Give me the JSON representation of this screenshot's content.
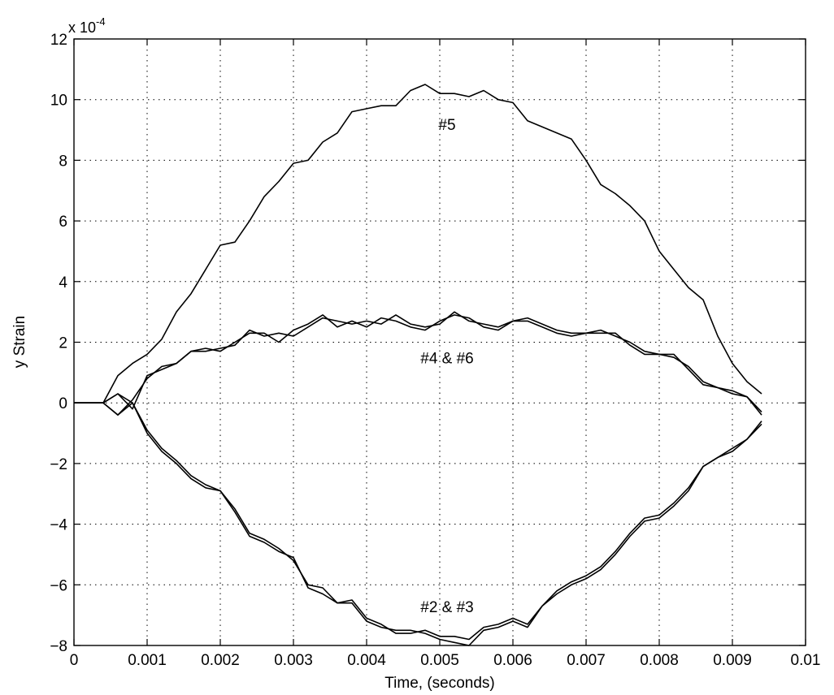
{
  "chart_data": {
    "type": "line",
    "title": "",
    "xlabel": "Time, (seconds)",
    "ylabel": "y Strain",
    "scale_label": "x 10",
    "scale_exponent": "-4",
    "xlim": [
      0,
      0.01
    ],
    "ylim": [
      -8,
      12
    ],
    "grid": true,
    "x_ticks": [
      0,
      0.001,
      0.002,
      0.003,
      0.004,
      0.005,
      0.006,
      0.007,
      0.008,
      0.009,
      0.01
    ],
    "x_tick_labels": [
      "0",
      "0.001",
      "0.002",
      "0.003",
      "0.004",
      "0.005",
      "0.006",
      "0.007",
      "0.008",
      "0.009",
      "0.01"
    ],
    "y_ticks": [
      -8,
      -6,
      -4,
      -2,
      0,
      2,
      4,
      6,
      8,
      10,
      12
    ],
    "y_tick_labels": [
      "−8",
      "−6",
      "−4",
      "−2",
      "0",
      "2",
      "4",
      "6",
      "8",
      "10",
      "12"
    ],
    "annotations": [
      {
        "text": "#5",
        "x": 0.0051,
        "y": 9.0
      },
      {
        "text": "#4 & #6",
        "x": 0.0051,
        "y": 1.3
      },
      {
        "text": "#2 & #3",
        "x": 0.0051,
        "y": -6.9
      }
    ],
    "series": [
      {
        "x": [
          0,
          0.0004,
          0.0006,
          0.0008,
          0.001,
          0.0012,
          0.0014,
          0.0016,
          0.0018,
          0.002,
          0.0022,
          0.0024,
          0.0026,
          0.0028,
          0.003,
          0.0032,
          0.0034,
          0.0036,
          0.0038,
          0.004,
          0.0042,
          0.0044,
          0.0046,
          0.0048,
          0.005,
          0.0052,
          0.0054,
          0.0056,
          0.0058,
          0.006,
          0.0062,
          0.0064,
          0.0066,
          0.0068,
          0.007,
          0.0072,
          0.0074,
          0.0076,
          0.0078,
          0.008,
          0.0082,
          0.0084,
          0.0086,
          0.0088,
          0.009,
          0.0092,
          0.0094
        ],
        "values": [
          0,
          0,
          0.9,
          1.3,
          1.6,
          2.1,
          3.0,
          3.6,
          4.4,
          5.2,
          5.3,
          6.0,
          6.8,
          7.3,
          7.9,
          8.0,
          8.6,
          8.9,
          9.6,
          9.7,
          9.8,
          9.8,
          10.3,
          10.5,
          10.2,
          10.2,
          10.1,
          10.3,
          10.0,
          9.9,
          9.3,
          9.1,
          8.9,
          8.7,
          8.0,
          7.2,
          6.9,
          6.5,
          6.0,
          5.0,
          4.4,
          3.8,
          3.4,
          2.2,
          1.3,
          0.7,
          0.3
        ]
      },
      {
        "x": [
          0,
          0.0004,
          0.0006,
          0.0008,
          0.001,
          0.0012,
          0.0014,
          0.0016,
          0.0018,
          0.002,
          0.0022,
          0.0024,
          0.0026,
          0.0028,
          0.003,
          0.0032,
          0.0034,
          0.0036,
          0.0038,
          0.004,
          0.0042,
          0.0044,
          0.0046,
          0.0048,
          0.005,
          0.0052,
          0.0054,
          0.0056,
          0.0058,
          0.006,
          0.0062,
          0.0064,
          0.0066,
          0.0068,
          0.007,
          0.0072,
          0.0074,
          0.0076,
          0.0078,
          0.008,
          0.0082,
          0.0084,
          0.0086,
          0.0088,
          0.009,
          0.0092,
          0.0094
        ],
        "values": [
          0,
          0,
          -0.4,
          0.1,
          0.8,
          1.2,
          1.3,
          1.7,
          1.7,
          1.8,
          1.9,
          2.4,
          2.2,
          2.3,
          2.2,
          2.5,
          2.8,
          2.7,
          2.6,
          2.7,
          2.6,
          2.9,
          2.6,
          2.5,
          2.6,
          3.0,
          2.7,
          2.6,
          2.5,
          2.7,
          2.8,
          2.6,
          2.4,
          2.3,
          2.3,
          2.4,
          2.2,
          2.0,
          1.7,
          1.6,
          1.5,
          1.2,
          0.7,
          0.5,
          0.4,
          0.2,
          -0.3
        ]
      },
      {
        "x": [
          0,
          0.0004,
          0.0006,
          0.0008,
          0.001,
          0.0012,
          0.0014,
          0.0016,
          0.0018,
          0.002,
          0.0022,
          0.0024,
          0.0026,
          0.0028,
          0.003,
          0.0032,
          0.0034,
          0.0036,
          0.0038,
          0.004,
          0.0042,
          0.0044,
          0.0046,
          0.0048,
          0.005,
          0.0052,
          0.0054,
          0.0056,
          0.0058,
          0.006,
          0.0062,
          0.0064,
          0.0066,
          0.0068,
          0.007,
          0.0072,
          0.0074,
          0.0076,
          0.0078,
          0.008,
          0.0082,
          0.0084,
          0.0086,
          0.0088,
          0.009,
          0.0092,
          0.0094
        ],
        "values": [
          0,
          0,
          0.3,
          -0.2,
          0.9,
          1.1,
          1.3,
          1.7,
          1.8,
          1.7,
          2.0,
          2.3,
          2.3,
          2.0,
          2.4,
          2.6,
          2.9,
          2.5,
          2.7,
          2.5,
          2.8,
          2.7,
          2.5,
          2.4,
          2.7,
          2.9,
          2.8,
          2.5,
          2.4,
          2.7,
          2.7,
          2.5,
          2.3,
          2.2,
          2.3,
          2.3,
          2.3,
          1.9,
          1.6,
          1.6,
          1.6,
          1.1,
          0.6,
          0.5,
          0.3,
          0.2,
          -0.4
        ]
      },
      {
        "x": [
          0,
          0.0004,
          0.0006,
          0.0008,
          0.001,
          0.0012,
          0.0014,
          0.0016,
          0.0018,
          0.002,
          0.0022,
          0.0024,
          0.0026,
          0.0028,
          0.003,
          0.0032,
          0.0034,
          0.0036,
          0.0038,
          0.004,
          0.0042,
          0.0044,
          0.0046,
          0.0048,
          0.005,
          0.0052,
          0.0054,
          0.0056,
          0.0058,
          0.006,
          0.0062,
          0.0064,
          0.0066,
          0.0068,
          0.007,
          0.0072,
          0.0074,
          0.0076,
          0.0078,
          0.008,
          0.0082,
          0.0084,
          0.0086,
          0.0088,
          0.009,
          0.0092,
          0.0094
        ],
        "values": [
          0,
          0,
          0.3,
          0,
          -0.9,
          -1.5,
          -1.9,
          -2.4,
          -2.7,
          -2.9,
          -3.5,
          -4.3,
          -4.5,
          -4.8,
          -5.2,
          -6.0,
          -6.1,
          -6.6,
          -6.5,
          -7.1,
          -7.3,
          -7.6,
          -7.6,
          -7.5,
          -7.7,
          -7.7,
          -7.8,
          -7.4,
          -7.3,
          -7.1,
          -7.3,
          -6.7,
          -6.2,
          -5.9,
          -5.7,
          -5.4,
          -4.9,
          -4.3,
          -3.8,
          -3.7,
          -3.3,
          -2.8,
          -2.1,
          -1.8,
          -1.5,
          -1.2,
          -0.6
        ]
      },
      {
        "x": [
          0,
          0.0004,
          0.0006,
          0.0008,
          0.001,
          0.0012,
          0.0014,
          0.0016,
          0.0018,
          0.002,
          0.0022,
          0.0024,
          0.0026,
          0.0028,
          0.003,
          0.0032,
          0.0034,
          0.0036,
          0.0038,
          0.004,
          0.0042,
          0.0044,
          0.0046,
          0.0048,
          0.005,
          0.0052,
          0.0054,
          0.0056,
          0.0058,
          0.006,
          0.0062,
          0.0064,
          0.0066,
          0.0068,
          0.007,
          0.0072,
          0.0074,
          0.0076,
          0.0078,
          0.008,
          0.0082,
          0.0084,
          0.0086,
          0.0088,
          0.009,
          0.0092,
          0.0094
        ],
        "values": [
          0,
          0,
          -0.4,
          0,
          -1.0,
          -1.6,
          -2.0,
          -2.5,
          -2.8,
          -2.9,
          -3.6,
          -4.4,
          -4.6,
          -4.9,
          -5.1,
          -6.1,
          -6.3,
          -6.6,
          -6.6,
          -7.2,
          -7.4,
          -7.5,
          -7.5,
          -7.6,
          -7.8,
          -7.9,
          -8.0,
          -7.5,
          -7.4,
          -7.2,
          -7.4,
          -6.7,
          -6.3,
          -6.0,
          -5.8,
          -5.5,
          -5.0,
          -4.4,
          -3.9,
          -3.8,
          -3.4,
          -2.9,
          -2.1,
          -1.8,
          -1.6,
          -1.2,
          -0.7
        ]
      }
    ]
  }
}
